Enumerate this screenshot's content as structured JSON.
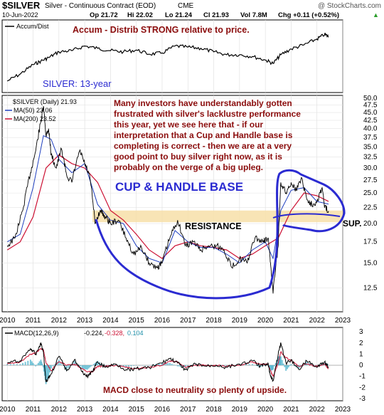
{
  "header": {
    "symbol": "$SILVER",
    "description": "Silver - Continuous Contract (EOD)",
    "exchange": "CME",
    "watermark": "@ StockCharts.com",
    "date": "10-Jun-2022",
    "open": "Op 21.72",
    "high": "Hi 22.02",
    "low": "Lo 21.24",
    "close": "Cl 21.93",
    "volume": "Vol 7.8M",
    "change": "Chg +0.11 (+0.52%)",
    "change_arrow": "▲"
  },
  "accum_panel": {
    "legend": "Accum/Dist",
    "annotation": "Accum - Distrib STRONG relative to price."
  },
  "price_panel": {
    "title_label": "SILVER: 13-year",
    "legend_main": "$SILVER (Daily) 21.93",
    "legend_ma50": "MA(50) 23.06",
    "legend_ma200": "MA(200) 23.52",
    "commentary": [
      "Many investors have understandably gotten",
      "frustrated with silver's lacklustre performance",
      "this year, yet we see here that - if our",
      "interpretation that a Cup and Handle base is",
      "completing is correct - then we are at a very",
      "good point to buy silver right now, as it is",
      "probably on the verge of a big upleg."
    ],
    "pattern_label": "CUP & HANDLE BASE",
    "resistance_label": "RESISTANCE",
    "support_label": "SUP.",
    "colors": {
      "price": "#000000",
      "ma50": "#1f3fbf",
      "ma200": "#cc1133",
      "annotation": "#8b0d0d",
      "drawing": "#2b2bd1",
      "zone": "#f7dfa8"
    }
  },
  "macd_panel": {
    "legend_name": "MACD(12,26,9)",
    "legend_macd": "-0.224,",
    "legend_signal": "-0.328,",
    "legend_hist": "0.104",
    "annotation": "MACD close to neutrality so plenty of upside."
  },
  "chart_data": [
    {
      "type": "line",
      "name": "Accum/Dist",
      "x": [
        2010.0,
        2010.5,
        2011.0,
        2011.3,
        2011.6,
        2012.0,
        2012.5,
        2013.0,
        2013.5,
        2014.0,
        2014.5,
        2015.0,
        2015.5,
        2016.0,
        2016.5,
        2017.0,
        2017.5,
        2018.0,
        2018.5,
        2019.0,
        2019.5,
        2020.0,
        2020.3,
        2020.6,
        2021.0,
        2021.5,
        2022.0,
        2022.3,
        2022.45
      ],
      "values": [
        0.1,
        0.22,
        0.38,
        0.44,
        0.5,
        0.6,
        0.62,
        0.7,
        0.66,
        0.62,
        0.6,
        0.63,
        0.56,
        0.58,
        0.7,
        0.68,
        0.66,
        0.6,
        0.55,
        0.55,
        0.52,
        0.46,
        0.4,
        0.55,
        0.65,
        0.72,
        0.82,
        0.9,
        0.86
      ]
    },
    {
      "type": "line",
      "title": "",
      "x": [
        2010.0,
        2010.3,
        2010.6,
        2010.9,
        2011.1,
        2011.3,
        2011.4,
        2011.5,
        2011.6,
        2011.7,
        2011.9,
        2012.1,
        2012.3,
        2012.5,
        2012.8,
        2013.0,
        2013.2,
        2013.4,
        2013.6,
        2013.8,
        2014.0,
        2014.3,
        2014.6,
        2014.9,
        2015.2,
        2015.5,
        2015.8,
        2016.0,
        2016.3,
        2016.6,
        2016.9,
        2017.2,
        2017.5,
        2017.8,
        2018.1,
        2018.4,
        2018.7,
        2019.0,
        2019.3,
        2019.6,
        2019.9,
        2020.1,
        2020.2,
        2020.3,
        2020.5,
        2020.6,
        2020.8,
        2021.0,
        2021.2,
        2021.4,
        2021.6,
        2021.8,
        2022.0,
        2022.2,
        2022.3,
        2022.45
      ],
      "values": [
        17.0,
        18.0,
        22.0,
        29.0,
        34.0,
        42.0,
        47.0,
        38.0,
        40.0,
        33.0,
        30.0,
        34.5,
        28.5,
        27.0,
        34.0,
        31.0,
        28.0,
        20.0,
        22.0,
        21.0,
        20.0,
        20.5,
        18.0,
        16.0,
        16.8,
        15.0,
        14.5,
        15.0,
        18.0,
        20.5,
        17.0,
        17.5,
        16.5,
        17.0,
        17.0,
        16.5,
        14.5,
        15.5,
        15.0,
        18.0,
        17.5,
        18.0,
        15.0,
        12.0,
        17.0,
        27.0,
        25.0,
        27.0,
        25.5,
        28.0,
        24.0,
        23.0,
        23.5,
        26.0,
        22.5,
        21.93
      ],
      "ma50_x": [
        2010.0,
        2010.5,
        2011.0,
        2011.4,
        2011.7,
        2012.0,
        2012.5,
        2013.0,
        2013.5,
        2014.0,
        2014.5,
        2015.0,
        2015.5,
        2016.0,
        2016.5,
        2017.0,
        2017.5,
        2018.0,
        2018.5,
        2019.0,
        2019.5,
        2020.0,
        2020.3,
        2020.6,
        2021.0,
        2021.5,
        2022.0,
        2022.45
      ],
      "ma50": [
        17.5,
        18.5,
        26.0,
        38.0,
        37.0,
        32.0,
        29.0,
        31.0,
        23.0,
        20.5,
        20.0,
        17.0,
        15.5,
        15.0,
        19.0,
        17.5,
        16.8,
        16.8,
        16.0,
        15.0,
        16.5,
        17.5,
        15.5,
        22.0,
        25.5,
        26.0,
        23.5,
        23.06
      ],
      "ma200_x": [
        2010.0,
        2010.5,
        2011.0,
        2011.5,
        2012.0,
        2012.5,
        2013.0,
        2013.5,
        2014.0,
        2014.5,
        2015.0,
        2015.5,
        2016.0,
        2016.5,
        2017.0,
        2017.5,
        2018.0,
        2018.5,
        2019.0,
        2019.5,
        2020.0,
        2020.5,
        2021.0,
        2021.5,
        2022.0,
        2022.45
      ],
      "ma200": [
        16.5,
        17.5,
        21.0,
        30.0,
        33.0,
        31.0,
        30.0,
        27.0,
        22.0,
        20.5,
        18.5,
        16.5,
        15.5,
        17.0,
        17.5,
        17.0,
        16.8,
        16.5,
        15.5,
        16.0,
        17.0,
        18.0,
        22.0,
        25.0,
        24.5,
        23.52
      ],
      "xlim": [
        2009.8,
        2023.0
      ],
      "ylim": [
        10.5,
        51.0
      ],
      "yticks": [
        "50.0",
        "47.5",
        "45.0",
        "42.5",
        "40.0",
        "37.5",
        "35.0",
        "32.5",
        "30.0",
        "27.5",
        "25.0",
        "22.5",
        "20.0",
        "17.5",
        "15.0",
        "12.5"
      ],
      "ytick_values": [
        50.0,
        47.5,
        45.0,
        42.5,
        40.0,
        37.5,
        35.0,
        32.5,
        30.0,
        27.5,
        25.0,
        22.5,
        20.0,
        17.5,
        15.0,
        12.5
      ],
      "log_scale": true,
      "resistance_band": [
        20.2,
        22.0
      ]
    },
    {
      "type": "line",
      "title": "",
      "x": [
        2010.0,
        2010.5,
        2010.9,
        2011.1,
        2011.3,
        2011.4,
        2011.5,
        2011.7,
        2012.0,
        2012.3,
        2012.6,
        2012.9,
        2013.1,
        2013.3,
        2013.5,
        2013.8,
        2014.2,
        2014.6,
        2015.0,
        2015.5,
        2016.0,
        2016.3,
        2016.6,
        2016.9,
        2017.3,
        2017.7,
        2018.1,
        2018.5,
        2019.0,
        2019.5,
        2019.8,
        2020.1,
        2020.2,
        2020.3,
        2020.5,
        2020.6,
        2020.8,
        2021.0,
        2021.3,
        2021.6,
        2022.0,
        2022.3,
        2022.45
      ],
      "values": [
        0.2,
        0.4,
        1.5,
        1.0,
        2.0,
        1.2,
        -1.5,
        -0.8,
        0.8,
        -0.5,
        0.5,
        -0.6,
        -1.0,
        -0.6,
        0.3,
        -0.2,
        0.1,
        -0.4,
        -0.3,
        -0.2,
        0.2,
        0.6,
        0.2,
        -0.4,
        0.1,
        -0.1,
        0.0,
        -0.2,
        0.1,
        0.4,
        -0.1,
        0.2,
        -1.0,
        -1.4,
        1.0,
        2.0,
        0.2,
        0.5,
        -0.4,
        0.4,
        -0.2,
        0.3,
        -0.224
      ],
      "signal": [
        0.1,
        0.3,
        1.0,
        1.1,
        1.5,
        1.4,
        0.2,
        -0.5,
        0.3,
        0.0,
        0.1,
        -0.3,
        -0.6,
        -0.6,
        -0.1,
        -0.1,
        0.0,
        -0.2,
        -0.3,
        -0.2,
        0.0,
        0.4,
        0.3,
        -0.2,
        0.0,
        0.0,
        0.0,
        -0.1,
        0.0,
        0.3,
        0.1,
        0.1,
        -0.5,
        -1.0,
        0.2,
        1.2,
        0.7,
        0.4,
        -0.1,
        0.1,
        -0.1,
        0.1,
        -0.328
      ],
      "xlim": [
        2009.8,
        2023.0
      ],
      "ylim": [
        -3.2,
        3.4
      ],
      "yticks": [
        "3",
        "2",
        "1",
        "0",
        "-1",
        "-2",
        "-3"
      ],
      "ytick_values": [
        3,
        2,
        1,
        0,
        -1,
        -2,
        -3
      ]
    }
  ],
  "x_axis": {
    "labels": [
      "2010",
      "2011",
      "2012",
      "2013",
      "2014",
      "2015",
      "2016",
      "2017",
      "2018",
      "2019",
      "2020",
      "2021",
      "2022",
      "2023"
    ],
    "values": [
      2010,
      2011,
      2012,
      2013,
      2014,
      2015,
      2016,
      2017,
      2018,
      2019,
      2020,
      2021,
      2022,
      2023
    ]
  }
}
